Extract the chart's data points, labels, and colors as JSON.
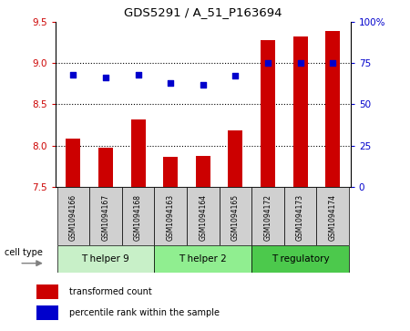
{
  "title": "GDS5291 / A_51_P163694",
  "samples": [
    "GSM1094166",
    "GSM1094167",
    "GSM1094168",
    "GSM1094163",
    "GSM1094164",
    "GSM1094165",
    "GSM1094172",
    "GSM1094173",
    "GSM1094174"
  ],
  "bar_values": [
    8.08,
    7.98,
    8.32,
    7.87,
    7.88,
    8.18,
    9.28,
    9.32,
    9.38
  ],
  "dot_values": [
    68,
    66,
    68,
    63,
    62,
    67,
    75,
    75,
    75
  ],
  "bar_color": "#cc0000",
  "dot_color": "#0000cc",
  "ylim_left": [
    7.5,
    9.5
  ],
  "ylim_right": [
    0,
    100
  ],
  "yticks_left": [
    7.5,
    8.0,
    8.5,
    9.0,
    9.5
  ],
  "ytick_labels_right": [
    "0",
    "25",
    "50",
    "75",
    "100%"
  ],
  "yticks_right": [
    0,
    25,
    50,
    75,
    100
  ],
  "cell_groups": [
    {
      "label": "T helper 9",
      "indices": [
        0,
        1,
        2
      ],
      "color": "#c8f0c8"
    },
    {
      "label": "T helper 2",
      "indices": [
        3,
        4,
        5
      ],
      "color": "#90ee90"
    },
    {
      "label": "T regulatory",
      "indices": [
        6,
        7,
        8
      ],
      "color": "#4cc94c"
    }
  ],
  "cell_type_label": "cell type",
  "legend_bar_label": "transformed count",
  "legend_dot_label": "percentile rank within the sample",
  "background_color": "#ffffff",
  "bar_bottom": 7.5,
  "x_positions": [
    0,
    1,
    2,
    3,
    4,
    5,
    6,
    7,
    8
  ],
  "sample_box_color": "#d0d0d0",
  "bar_width": 0.45
}
